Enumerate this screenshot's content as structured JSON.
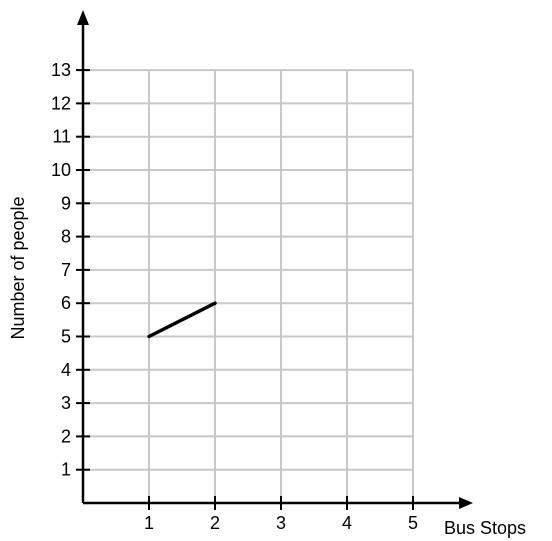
{
  "chart_data": {
    "type": "line",
    "xlabel": "Bus Stops",
    "ylabel": "Number of people",
    "x_ticks": [
      1,
      2,
      3,
      4,
      5
    ],
    "y_ticks": [
      1,
      2,
      3,
      4,
      5,
      6,
      7,
      8,
      9,
      10,
      11,
      12,
      13
    ],
    "xlim": [
      0,
      5
    ],
    "ylim": [
      0,
      13
    ],
    "grid": true,
    "series": [
      {
        "x": [
          1,
          2
        ],
        "y": [
          5,
          6
        ]
      }
    ],
    "colors": {
      "grid": "#c8c8c8",
      "axis": "#000000",
      "line": "#000000"
    }
  }
}
